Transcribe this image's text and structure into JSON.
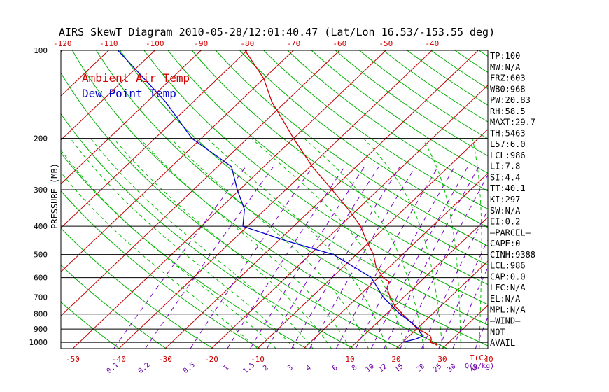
{
  "title": "AIRS SkewT Diagram 2010-05-28/12:01:40.47 (Lat/Lon 16.53/-153.55 deg)",
  "colors": {
    "ambient": "#d40000",
    "dewpoint": "#0000c8",
    "isotherm": "#c00000",
    "dry_adiabat": "#00b000",
    "moist_adiabat": "#00c000",
    "mixing_ratio": "#7a00c8",
    "isobar": "#000000"
  },
  "chart_data": {
    "type": "line",
    "title": "AIRS SkewT Diagram 2010-05-28/12:01:40.47 (Lat/Lon 16.53/-153.55 deg)",
    "ylabel": "PRESSURE (MB)",
    "xlabel": "T(C)",
    "y_scale": "log",
    "ylim": [
      1050,
      100
    ],
    "pressure_ticks": [
      100,
      200,
      300,
      400,
      500,
      600,
      700,
      800,
      900,
      1000
    ],
    "top_temp_ticks": [
      "-120",
      "-110",
      "-100",
      "-90",
      "-80",
      "-70",
      "-60",
      "-50",
      "-40"
    ],
    "bottom_temp_ticks": [
      "-50",
      "-40",
      "-30",
      "-20",
      "-10",
      "10",
      "20",
      "30",
      "40"
    ],
    "mixing_ratio_ticks": [
      "0.1",
      "0.2",
      "0.5",
      "1",
      "1.5",
      "2",
      "3",
      "4",
      "6",
      "8",
      "10",
      "12",
      "15",
      "20",
      "25",
      "30",
      "40"
    ],
    "mixing_ratio_unit": "Q(g/kg)",
    "legend": [
      "Ambient Air Temp",
      "Dew Point Temp"
    ],
    "series": [
      {
        "name": "Ambient Air Temp",
        "points": [
          {
            "p": 1016,
            "t": 27.8
          },
          {
            "p": 1000,
            "t": 26.0
          },
          {
            "p": 975,
            "t": 25.5
          },
          {
            "p": 950,
            "t": 24.5
          },
          {
            "p": 925,
            "t": 22.5
          },
          {
            "p": 900,
            "t": 20.2
          },
          {
            "p": 850,
            "t": 17.0
          },
          {
            "p": 800,
            "t": 13.5
          },
          {
            "p": 750,
            "t": 10.0
          },
          {
            "p": 700,
            "t": 7.0
          },
          {
            "p": 650,
            "t": 4.2
          },
          {
            "p": 620,
            "t": 3.3
          },
          {
            "p": 600,
            "t": 1.0
          },
          {
            "p": 550,
            "t": -3.0
          },
          {
            "p": 500,
            "t": -6.3
          },
          {
            "p": 450,
            "t": -10.8
          },
          {
            "p": 400,
            "t": -15.5
          },
          {
            "p": 350,
            "t": -22.0
          },
          {
            "p": 300,
            "t": -30.0
          },
          {
            "p": 250,
            "t": -39.5
          },
          {
            "p": 200,
            "t": -50.0
          },
          {
            "p": 175,
            "t": -56.0
          },
          {
            "p": 150,
            "t": -63.0
          },
          {
            "p": 125,
            "t": -70.0
          },
          {
            "p": 100,
            "t": -80.5
          }
        ]
      },
      {
        "name": "Dew Point Temp",
        "points": [
          {
            "p": 1000,
            "t": 19.8
          },
          {
            "p": 975,
            "t": 22.0
          },
          {
            "p": 950,
            "t": 23.0
          },
          {
            "p": 925,
            "t": 21.5
          },
          {
            "p": 900,
            "t": 20.5
          },
          {
            "p": 850,
            "t": 17.0
          },
          {
            "p": 800,
            "t": 13.0
          },
          {
            "p": 700,
            "t": 5.5
          },
          {
            "p": 600,
            "t": -1.5
          },
          {
            "p": 500,
            "t": -15.0
          },
          {
            "p": 450,
            "t": -28.0
          },
          {
            "p": 400,
            "t": -41.0
          },
          {
            "p": 350,
            "t": -44.5
          },
          {
            "p": 300,
            "t": -50.5
          },
          {
            "p": 250,
            "t": -57.0
          },
          {
            "p": 200,
            "t": -72.0
          },
          {
            "p": 150,
            "t": -86.0
          },
          {
            "p": 100,
            "t": -108.0
          }
        ]
      }
    ],
    "indices": [
      "TP:100",
      "MW:N/A",
      "FRZ:603",
      "WB0:968",
      "PW:20.83",
      "RH:58.5",
      "MAXT:29.7",
      "TH:5463",
      "L57:6.0",
      "LCL:986",
      "LI:7.8",
      "SI:4.4",
      "TT:40.1",
      "KI:297",
      "SW:N/A",
      "EI:0.2",
      "—PARCEL—",
      "CAPE:0",
      "CINH:9388",
      "LCL:986",
      "CAP:0.0",
      "LFC:N/A",
      "EL:N/A",
      "MPL:N/A",
      "—WIND—",
      "NOT",
      "AVAIL"
    ]
  }
}
